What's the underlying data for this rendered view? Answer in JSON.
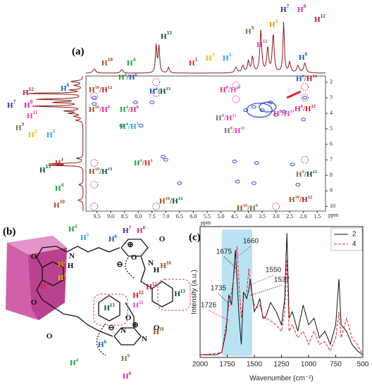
{
  "label_colors": {
    "1": "#e0202a",
    "2": "#f08a00",
    "3": "#f2b400",
    "4": "#1a9a3a",
    "5": "#1fa0d8",
    "6": "#1750c8",
    "7": "#3a1aa0",
    "8": "#e0208a",
    "9": "#7a6a50",
    "10": "#9a4a10",
    "11": "#e040b0",
    "12": "#c01020",
    "13": "#0a4a2a"
  },
  "panel_a": {
    "label": "(a)",
    "x_axis_label": "ppm",
    "y_axis_label": "ppm",
    "xlim": [
      9.9,
      1.2
    ],
    "xticks": [
      {
        "value": 9.5,
        "label": "9.5"
      },
      {
        "value": 9.0,
        "label": "9.0"
      },
      {
        "value": 8.5,
        "label": "8.5"
      },
      {
        "value": 8.0,
        "label": "8.0"
      },
      {
        "value": 7.5,
        "label": "7.5"
      },
      {
        "value": 7.0,
        "label": "7.0"
      },
      {
        "value": 6.5,
        "label": "6.5"
      },
      {
        "value": 6.0,
        "label": "6.0"
      },
      {
        "value": 5.5,
        "label": "5.5"
      },
      {
        "value": 5.0,
        "label": "5.0"
      },
      {
        "value": 4.5,
        "label": "4.5"
      },
      {
        "value": 4.0,
        "label": "4.0"
      },
      {
        "value": 3.5,
        "label": "3.5"
      },
      {
        "value": 3.0,
        "label": "3.0"
      },
      {
        "value": 2.5,
        "label": "2.5"
      },
      {
        "value": 2.0,
        "label": "2.0"
      },
      {
        "value": 1.5,
        "label": "1.5"
      }
    ],
    "ylim": [
      1.6,
      10.3
    ],
    "yticks": [
      2,
      3,
      4,
      5,
      6,
      7,
      8,
      9,
      10
    ],
    "top_labels": [
      "H10",
      "H4",
      "H13",
      "H1",
      "H3",
      "H5",
      "H9",
      "H11",
      "H2",
      "H7",
      "H8",
      "H12",
      "H6"
    ],
    "left_labels": [
      "H6",
      "H12",
      "H7",
      "H8",
      "H11",
      "H9",
      "H3",
      "H5",
      "H1",
      "H13",
      "H4",
      "H10"
    ],
    "cross_peak_labels": [
      "H4/H6",
      "H10/H12",
      "H6/H13",
      "H10/H8",
      "H4/H8",
      "H4/H5",
      "H4/H1",
      "H10/H13",
      "H10/H13",
      "H8/H11",
      "H6/H12",
      "H8/H12",
      "H9/H11",
      "H9/H11",
      "H8/H11",
      "H9/H13",
      "H10/H12",
      "H10/H9"
    ]
  },
  "panel_b": {
    "label": "(b)",
    "atom_labels": [
      "H4",
      "H5",
      "H6",
      "H7",
      "H8",
      "H10",
      "H12",
      "H13",
      "H1",
      "H2",
      "H3",
      "H13",
      "H12",
      "H11",
      "H10",
      "H6",
      "H4",
      "H9",
      "H8",
      "O",
      "N",
      "H",
      "N",
      "H",
      "O",
      "O",
      "O",
      "O",
      "O",
      "O",
      "N",
      "N",
      "⊕",
      "⊖",
      "⊕",
      "⊖"
    ]
  },
  "chart_data": {
    "type": "line",
    "label": "(c)",
    "x_axis_label": "Wavenumber (cm⁻¹)",
    "y_axis_label": "Intensity (a.u.)",
    "xlim": [
      2000,
      500
    ],
    "xticks": [
      2000,
      1750,
      1500,
      1250,
      1000,
      750,
      500
    ],
    "ylim": [
      0,
      1
    ],
    "highlight_range": [
      1800,
      1520
    ],
    "legend": "upper right",
    "x": [
      2000,
      1850,
      1800,
      1760,
      1735,
      1710,
      1675,
      1660,
      1640,
      1620,
      1600,
      1570,
      1550,
      1537,
      1500,
      1470,
      1450,
      1420,
      1400,
      1350,
      1300,
      1250,
      1220,
      1200,
      1180,
      1150,
      1100,
      1050,
      1000,
      950,
      900,
      850,
      800,
      750,
      720,
      700,
      650,
      600,
      550,
      500
    ],
    "series": [
      {
        "name": "2",
        "color": "#111111",
        "dash": false,
        "values": [
          0.02,
          0.02,
          0.04,
          0.2,
          0.48,
          0.4,
          0.82,
          0.6,
          0.3,
          0.1,
          0.5,
          0.45,
          0.52,
          0.6,
          0.35,
          0.4,
          0.45,
          0.3,
          0.3,
          0.42,
          0.35,
          0.25,
          0.45,
          0.95,
          0.3,
          0.35,
          0.2,
          0.4,
          0.25,
          0.3,
          0.15,
          0.2,
          0.1,
          0.25,
          0.6,
          0.25,
          0.2,
          0.1,
          0.05,
          0.02
        ]
      },
      {
        "name": "4",
        "color": "#e0202a",
        "dash": true,
        "values": [
          0.02,
          0.03,
          0.04,
          0.25,
          0.4,
          0.5,
          0.7,
          0.85,
          0.55,
          0.3,
          0.45,
          0.5,
          0.68,
          0.55,
          0.4,
          0.38,
          0.4,
          0.32,
          0.3,
          0.28,
          0.25,
          0.2,
          0.35,
          0.75,
          0.2,
          0.25,
          0.15,
          0.2,
          0.1,
          0.2,
          0.1,
          0.12,
          0.05,
          0.15,
          0.35,
          0.15,
          0.3,
          0.15,
          0.1,
          0.02
        ]
      }
    ],
    "annotations": [
      {
        "text": "1726",
        "x": 1726,
        "color": "#e0202a"
      },
      {
        "text": "1735",
        "x": 1735,
        "color": "#111111"
      },
      {
        "text": "1675",
        "x": 1675,
        "color": "#111111"
      },
      {
        "text": "1660",
        "x": 1660,
        "color": "#e0202a"
      },
      {
        "text": "1550",
        "x": 1550,
        "color": "#e0202a"
      },
      {
        "text": "1537",
        "x": 1537,
        "color": "#111111"
      }
    ]
  }
}
